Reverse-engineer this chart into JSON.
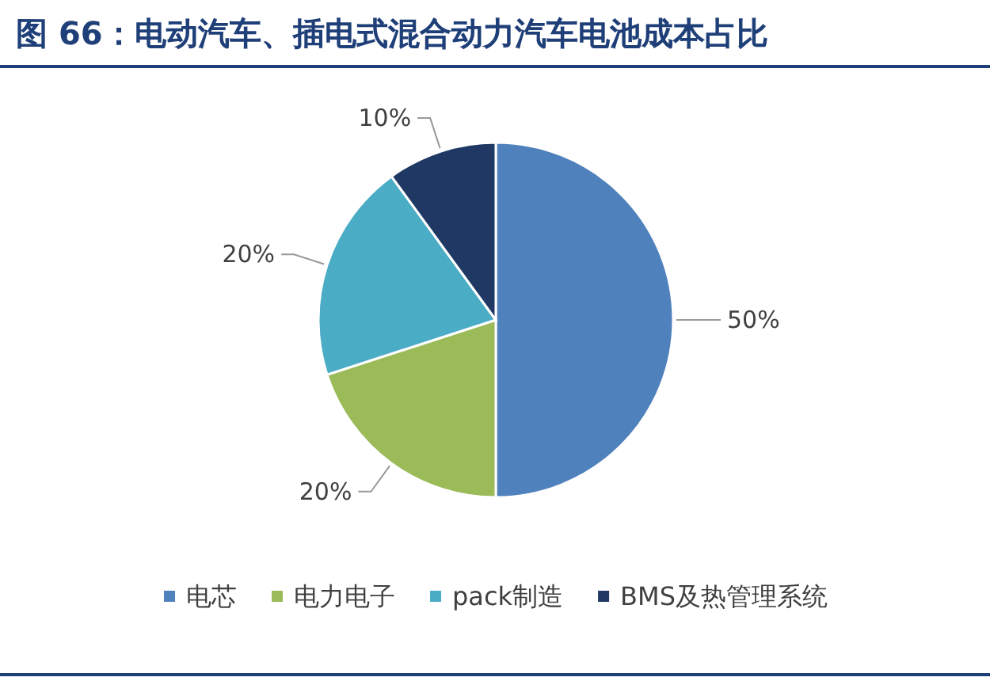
{
  "chart_data": {
    "type": "pie",
    "title": "图 66：电动汽车、插电式混合动力汽车电池成本占比",
    "categories": [
      "电芯",
      "电力电子",
      "pack制造",
      "BMS及热管理系统"
    ],
    "values": [
      50,
      20,
      20,
      10
    ],
    "value_labels": [
      "50%",
      "20%",
      "20%",
      "10%"
    ],
    "colors": [
      "#4f81bd",
      "#9bbb59",
      "#4bacc6",
      "#1f3864"
    ],
    "legend": "bottom"
  }
}
